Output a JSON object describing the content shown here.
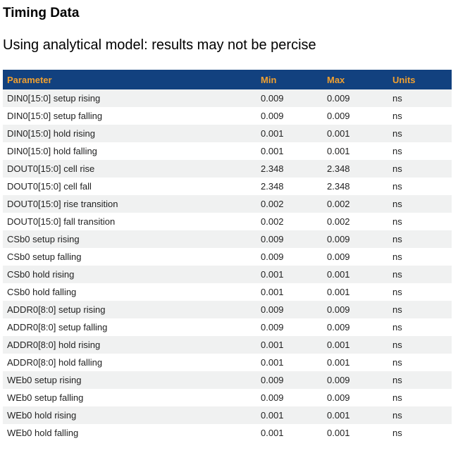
{
  "page": {
    "title": "Timing Data",
    "subtitle": "Using analytical model: results may not be percise"
  },
  "colors": {
    "table_header_bg": "#12417F",
    "table_header_text": "#F0A030",
    "row_alt_bg": "#F0F1F1",
    "row_bg": "#FFFFFF",
    "row_text": "#222222"
  },
  "table": {
    "columns": [
      "Parameter",
      "Min",
      "Max",
      "Units"
    ],
    "rows": [
      {
        "parameter": "DIN0[15:0] setup rising",
        "min": "0.009",
        "max": "0.009",
        "units": "ns"
      },
      {
        "parameter": "DIN0[15:0] setup falling",
        "min": "0.009",
        "max": "0.009",
        "units": "ns"
      },
      {
        "parameter": "DIN0[15:0] hold rising",
        "min": "0.001",
        "max": "0.001",
        "units": "ns"
      },
      {
        "parameter": "DIN0[15:0] hold falling",
        "min": "0.001",
        "max": "0.001",
        "units": "ns"
      },
      {
        "parameter": "DOUT0[15:0] cell rise",
        "min": "2.348",
        "max": "2.348",
        "units": "ns"
      },
      {
        "parameter": "DOUT0[15:0] cell fall",
        "min": "2.348",
        "max": "2.348",
        "units": "ns"
      },
      {
        "parameter": "DOUT0[15:0] rise transition",
        "min": "0.002",
        "max": "0.002",
        "units": "ns"
      },
      {
        "parameter": "DOUT0[15:0] fall transition",
        "min": "0.002",
        "max": "0.002",
        "units": "ns"
      },
      {
        "parameter": "CSb0 setup rising",
        "min": "0.009",
        "max": "0.009",
        "units": "ns"
      },
      {
        "parameter": "CSb0 setup falling",
        "min": "0.009",
        "max": "0.009",
        "units": "ns"
      },
      {
        "parameter": "CSb0 hold rising",
        "min": "0.001",
        "max": "0.001",
        "units": "ns"
      },
      {
        "parameter": "CSb0 hold falling",
        "min": "0.001",
        "max": "0.001",
        "units": "ns"
      },
      {
        "parameter": "ADDR0[8:0] setup rising",
        "min": "0.009",
        "max": "0.009",
        "units": "ns"
      },
      {
        "parameter": "ADDR0[8:0] setup falling",
        "min": "0.009",
        "max": "0.009",
        "units": "ns"
      },
      {
        "parameter": "ADDR0[8:0] hold rising",
        "min": "0.001",
        "max": "0.001",
        "units": "ns"
      },
      {
        "parameter": "ADDR0[8:0] hold falling",
        "min": "0.001",
        "max": "0.001",
        "units": "ns"
      },
      {
        "parameter": "WEb0 setup rising",
        "min": "0.009",
        "max": "0.009",
        "units": "ns"
      },
      {
        "parameter": "WEb0 setup falling",
        "min": "0.009",
        "max": "0.009",
        "units": "ns"
      },
      {
        "parameter": "WEb0 hold rising",
        "min": "0.001",
        "max": "0.001",
        "units": "ns"
      },
      {
        "parameter": "WEb0 hold falling",
        "min": "0.001",
        "max": "0.001",
        "units": "ns"
      }
    ]
  }
}
